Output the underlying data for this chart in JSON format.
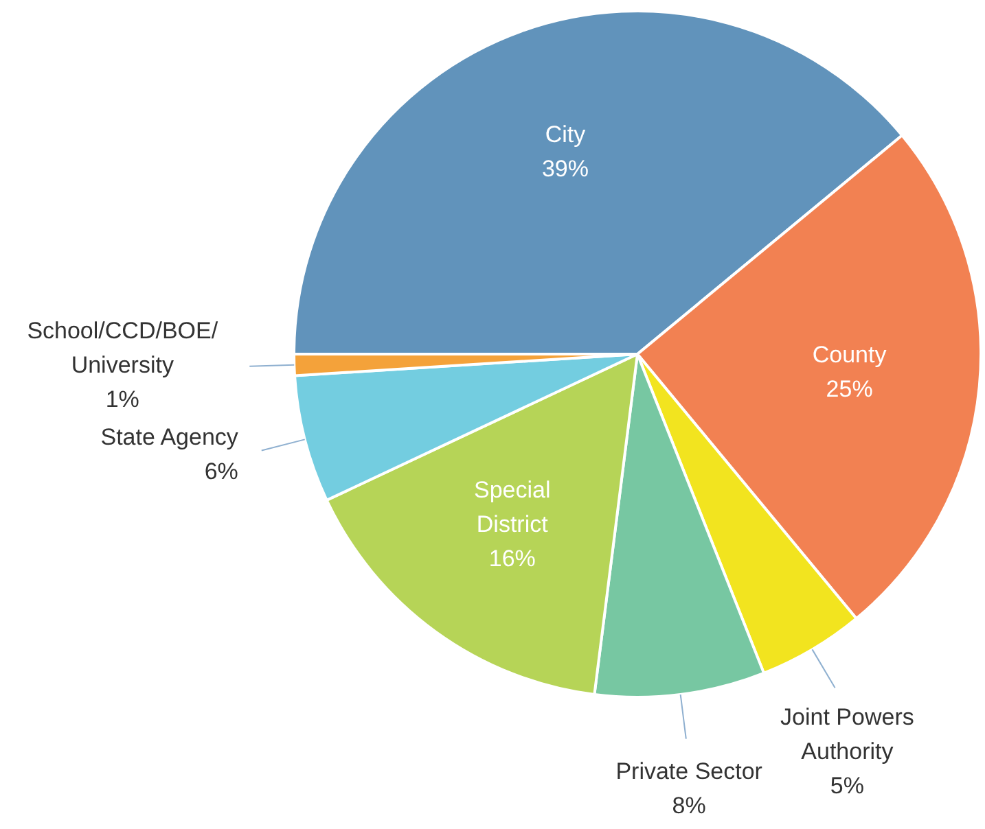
{
  "chart_data": {
    "type": "pie",
    "categories": [
      "City",
      "County",
      "Joint Powers Authority",
      "Private Sector",
      "Special District",
      "State Agency",
      "School/CCD/BOE/University"
    ],
    "values": [
      39,
      25,
      5,
      8,
      16,
      6,
      1
    ],
    "colors": [
      "#6193bb",
      "#f28152",
      "#f2e41f",
      "#77c7a2",
      "#b6d457",
      "#73cde0",
      "#f4a23a"
    ],
    "value_labels": [
      "39%",
      "25%",
      "5%",
      "8%",
      "16%",
      "6%",
      "1%"
    ]
  }
}
